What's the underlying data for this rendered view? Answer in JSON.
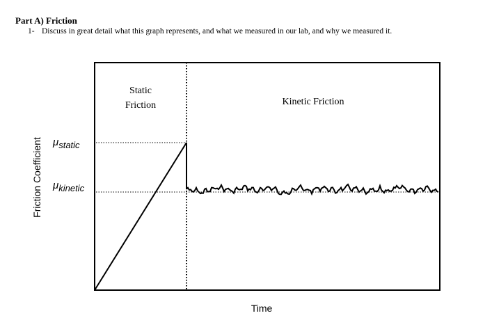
{
  "header": {
    "part_title": "Part A) Friction"
  },
  "question": {
    "number": "1-",
    "text": "Discuss in great detail what this graph represents, and what we measured in our lab, and why we measured it."
  },
  "chart_data": {
    "type": "line",
    "title": "",
    "xlabel": "Time",
    "ylabel": "Friction Coefficient",
    "regions": [
      {
        "label_line1": "Static",
        "label_line2": "Friction"
      },
      {
        "label": "Kinetic Friction"
      }
    ],
    "levels": [
      {
        "symbol": "μ",
        "subscript": "static"
      },
      {
        "symbol": "μ",
        "subscript": "kinetic"
      }
    ],
    "grid": false,
    "legend": "none"
  }
}
